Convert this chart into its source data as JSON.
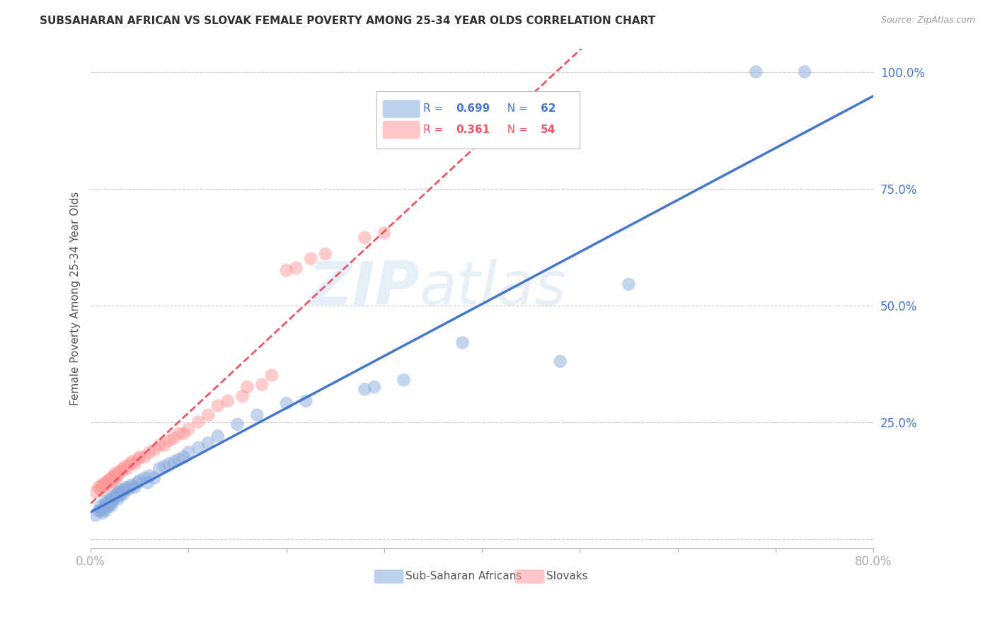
{
  "title": "SUBSAHARAN AFRICAN VS SLOVAK FEMALE POVERTY AMONG 25-34 YEAR OLDS CORRELATION CHART",
  "source": "Source: ZipAtlas.com",
  "ylabel": "Female Poverty Among 25-34 Year Olds",
  "xlim": [
    0.0,
    0.8
  ],
  "ylim": [
    -0.02,
    1.05
  ],
  "xticks": [
    0.0,
    0.1,
    0.2,
    0.3,
    0.4,
    0.5,
    0.6,
    0.7,
    0.8
  ],
  "xticklabels": [
    "0.0%",
    "",
    "",
    "",
    "",
    "",
    "",
    "",
    "80.0%"
  ],
  "ytick_positions": [
    0.0,
    0.25,
    0.5,
    0.75,
    1.0
  ],
  "ytick_labels": [
    "",
    "25.0%",
    "50.0%",
    "75.0%",
    "100.0%"
  ],
  "blue_color": "#88AADD",
  "pink_color": "#FF9999",
  "blue_line_color": "#4477CC",
  "pink_line_color": "#EE5566",
  "blue_R": 0.699,
  "blue_N": 62,
  "pink_R": 0.361,
  "pink_N": 54,
  "legend_label_blue": "Sub-Saharan Africans",
  "legend_label_pink": "Slovaks",
  "watermark_zip": "ZIP",
  "watermark_atlas": "atlas",
  "blue_scatter_x": [
    0.005,
    0.008,
    0.01,
    0.01,
    0.012,
    0.013,
    0.015,
    0.015,
    0.015,
    0.016,
    0.018,
    0.018,
    0.019,
    0.02,
    0.02,
    0.021,
    0.022,
    0.022,
    0.023,
    0.025,
    0.026,
    0.027,
    0.028,
    0.028,
    0.03,
    0.03,
    0.032,
    0.033,
    0.035,
    0.036,
    0.038,
    0.04,
    0.042,
    0.045,
    0.048,
    0.05,
    0.055,
    0.058,
    0.06,
    0.065,
    0.07,
    0.075,
    0.08,
    0.085,
    0.09,
    0.095,
    0.1,
    0.11,
    0.12,
    0.13,
    0.15,
    0.17,
    0.2,
    0.22,
    0.28,
    0.29,
    0.32,
    0.38,
    0.48,
    0.55,
    0.68,
    0.73
  ],
  "blue_scatter_y": [
    0.05,
    0.06,
    0.06,
    0.07,
    0.055,
    0.065,
    0.07,
    0.08,
    0.06,
    0.075,
    0.07,
    0.08,
    0.075,
    0.075,
    0.085,
    0.07,
    0.08,
    0.09,
    0.085,
    0.09,
    0.095,
    0.09,
    0.085,
    0.1,
    0.095,
    0.105,
    0.1,
    0.095,
    0.105,
    0.11,
    0.105,
    0.11,
    0.115,
    0.11,
    0.12,
    0.125,
    0.13,
    0.12,
    0.135,
    0.13,
    0.15,
    0.155,
    0.16,
    0.165,
    0.17,
    0.175,
    0.185,
    0.195,
    0.205,
    0.22,
    0.245,
    0.265,
    0.29,
    0.295,
    0.32,
    0.325,
    0.34,
    0.42,
    0.38,
    0.545,
    1.0,
    1.0
  ],
  "pink_scatter_x": [
    0.005,
    0.008,
    0.01,
    0.011,
    0.012,
    0.013,
    0.015,
    0.016,
    0.017,
    0.018,
    0.019,
    0.02,
    0.021,
    0.022,
    0.023,
    0.024,
    0.025,
    0.026,
    0.027,
    0.028,
    0.03,
    0.032,
    0.033,
    0.035,
    0.037,
    0.04,
    0.042,
    0.045,
    0.048,
    0.05,
    0.055,
    0.06,
    0.065,
    0.07,
    0.075,
    0.08,
    0.085,
    0.09,
    0.095,
    0.1,
    0.11,
    0.12,
    0.13,
    0.14,
    0.155,
    0.16,
    0.175,
    0.185,
    0.2,
    0.21,
    0.225,
    0.24,
    0.28,
    0.3
  ],
  "pink_scatter_y": [
    0.1,
    0.11,
    0.105,
    0.115,
    0.11,
    0.115,
    0.12,
    0.115,
    0.12,
    0.125,
    0.125,
    0.12,
    0.13,
    0.125,
    0.13,
    0.135,
    0.14,
    0.13,
    0.135,
    0.14,
    0.145,
    0.145,
    0.15,
    0.155,
    0.15,
    0.16,
    0.165,
    0.16,
    0.17,
    0.175,
    0.175,
    0.185,
    0.19,
    0.2,
    0.2,
    0.21,
    0.215,
    0.225,
    0.225,
    0.235,
    0.25,
    0.265,
    0.285,
    0.295,
    0.305,
    0.325,
    0.33,
    0.35,
    0.575,
    0.58,
    0.6,
    0.61,
    0.645,
    0.655
  ]
}
